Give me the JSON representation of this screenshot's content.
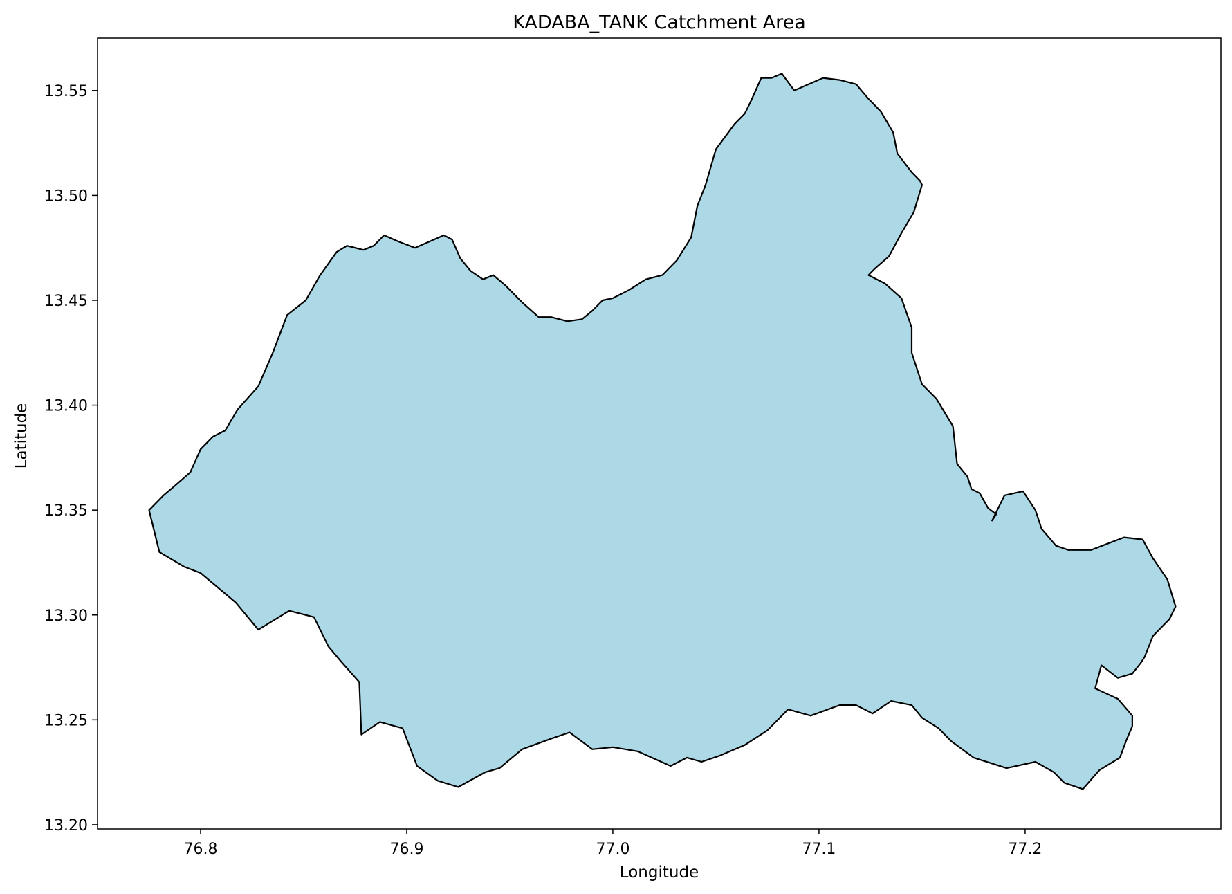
{
  "title": "KADABA_TANK Catchment Area",
  "xlabel": "Longitude",
  "ylabel": "Latitude",
  "colors": {
    "fill": "#add8e6",
    "edge": "#000000",
    "axes": "#000000",
    "background": "#ffffff"
  },
  "chart_data": {
    "type": "area",
    "title": "KADABA_TANK Catchment Area",
    "xlabel": "Longitude",
    "ylabel": "Latitude",
    "xlim": [
      76.75,
      77.295
    ],
    "ylim": [
      13.198,
      13.575
    ],
    "xticks": [
      76.8,
      76.9,
      77.0,
      77.1,
      77.2
    ],
    "xtick_labels": [
      "76.8",
      "76.9",
      "77.0",
      "77.1",
      "77.2"
    ],
    "yticks": [
      13.2,
      13.25,
      13.3,
      13.35,
      13.4,
      13.45,
      13.5,
      13.55
    ],
    "ytick_labels": [
      "13.20",
      "13.25",
      "13.30",
      "13.35",
      "13.40",
      "13.45",
      "13.50",
      "13.55"
    ],
    "grid": false,
    "legend": "none",
    "polygon": {
      "name": "KADABA_TANK",
      "lon": [
        76.775,
        76.782,
        76.788,
        76.795,
        76.8,
        76.806,
        76.812,
        76.818,
        76.828,
        76.835,
        76.842,
        76.851,
        76.858,
        76.866,
        76.871,
        76.879,
        76.884,
        76.889,
        76.896,
        76.904,
        76.911,
        76.918,
        76.922,
        76.926,
        76.931,
        76.937,
        76.942,
        76.948,
        76.956,
        76.964,
        76.97,
        76.978,
        76.985,
        76.99,
        76.995,
        77.0,
        77.008,
        77.016,
        77.024,
        77.031,
        77.038,
        77.041,
        77.045,
        77.05,
        77.059,
        77.064,
        77.067,
        77.072,
        77.077,
        77.082,
        77.088,
        77.095,
        77.102,
        77.11,
        77.118,
        77.124,
        77.13,
        77.136,
        77.138,
        77.145,
        77.149,
        77.15,
        77.146,
        77.14,
        77.134,
        77.127,
        77.124,
        77.132,
        77.14,
        77.145,
        77.145,
        77.15,
        77.157,
        77.165,
        77.167,
        77.172,
        77.174,
        77.178,
        77.182,
        77.186,
        77.184,
        77.19,
        77.199,
        77.205,
        77.208,
        77.215,
        77.221,
        77.232,
        77.24,
        77.248,
        77.257,
        77.262,
        77.269,
        77.273,
        77.27,
        77.262,
        77.258,
        77.256,
        77.252,
        77.245,
        77.237,
        77.234,
        77.245,
        77.252,
        77.252,
        77.249,
        77.246,
        77.236,
        77.228,
        77.219,
        77.214,
        77.205,
        77.191,
        77.175,
        77.164,
        77.158,
        77.15,
        77.145,
        77.135,
        77.126,
        77.118,
        77.11,
        77.096,
        77.085,
        77.075,
        77.064,
        77.052,
        77.043,
        77.036,
        77.028,
        77.012,
        77.0,
        76.99,
        76.979,
        76.97,
        76.956,
        76.945,
        76.938,
        76.925,
        76.915,
        76.905,
        76.898,
        76.887,
        76.878,
        76.877,
        76.868,
        76.862,
        76.855,
        76.843,
        76.828,
        76.817,
        76.8,
        76.792,
        76.78,
        76.775
      ],
      "lat": [
        13.35,
        13.357,
        13.362,
        13.368,
        13.379,
        13.385,
        13.388,
        13.398,
        13.409,
        13.425,
        13.443,
        13.45,
        13.462,
        13.473,
        13.476,
        13.474,
        13.476,
        13.481,
        13.478,
        13.475,
        13.478,
        13.481,
        13.479,
        13.47,
        13.464,
        13.46,
        13.462,
        13.457,
        13.449,
        13.442,
        13.442,
        13.44,
        13.441,
        13.445,
        13.45,
        13.451,
        13.455,
        13.46,
        13.462,
        13.469,
        13.48,
        13.495,
        13.505,
        13.522,
        13.534,
        13.539,
        13.545,
        13.556,
        13.556,
        13.558,
        13.55,
        13.553,
        13.556,
        13.555,
        13.553,
        13.546,
        13.54,
        13.53,
        13.52,
        13.511,
        13.507,
        13.505,
        13.492,
        13.482,
        13.471,
        13.465,
        13.462,
        13.458,
        13.451,
        13.437,
        13.425,
        13.41,
        13.403,
        13.39,
        13.372,
        13.366,
        13.36,
        13.358,
        13.351,
        13.348,
        13.345,
        13.357,
        13.359,
        13.35,
        13.341,
        13.333,
        13.331,
        13.331,
        13.334,
        13.337,
        13.336,
        13.327,
        13.317,
        13.304,
        13.298,
        13.29,
        13.28,
        13.277,
        13.272,
        13.27,
        13.276,
        13.265,
        13.26,
        13.252,
        13.247,
        13.24,
        13.232,
        13.226,
        13.217,
        13.22,
        13.225,
        13.23,
        13.227,
        13.232,
        13.24,
        13.246,
        13.251,
        13.257,
        13.259,
        13.253,
        13.257,
        13.257,
        13.252,
        13.255,
        13.245,
        13.238,
        13.233,
        13.23,
        13.232,
        13.228,
        13.235,
        13.237,
        13.236,
        13.244,
        13.241,
        13.236,
        13.227,
        13.225,
        13.218,
        13.221,
        13.228,
        13.246,
        13.249,
        13.243,
        13.268,
        13.278,
        13.285,
        13.299,
        13.302,
        13.293,
        13.306,
        13.32,
        13.323,
        13.33,
        13.35
      ]
    }
  }
}
